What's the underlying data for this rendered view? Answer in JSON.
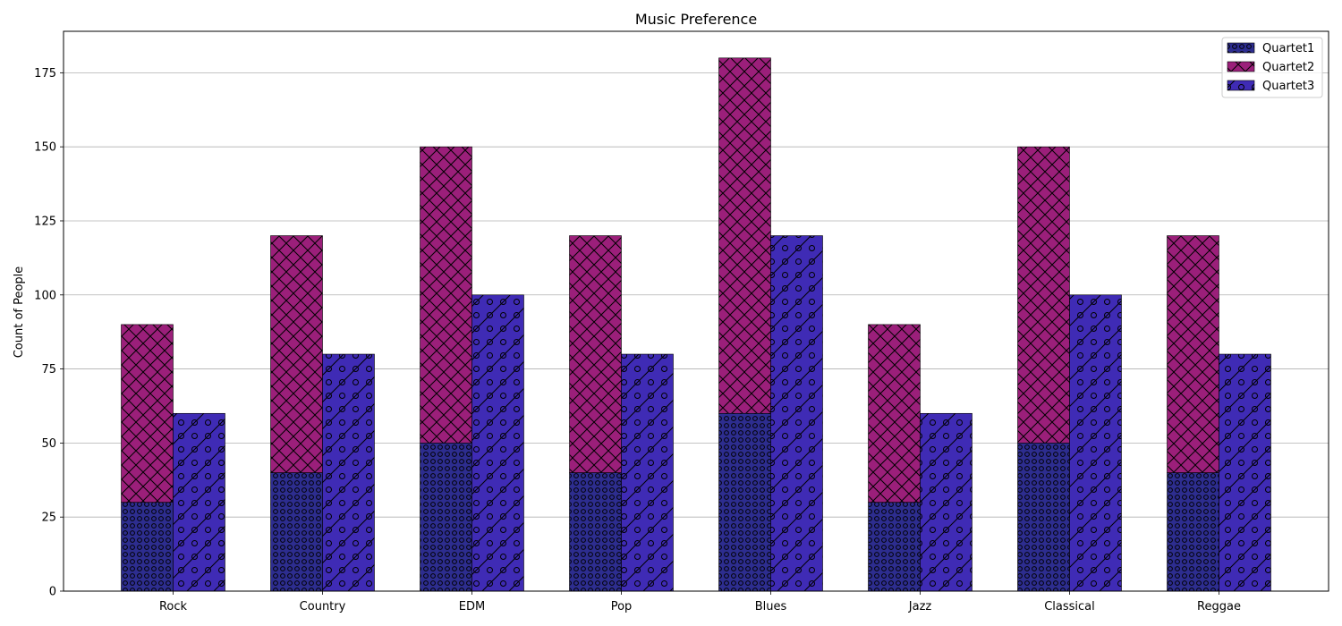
{
  "chart_data": {
    "type": "bar",
    "title": "Music Preference",
    "xlabel": "",
    "ylabel": "Count of People",
    "categories": [
      "Rock",
      "Country",
      "EDM",
      "Pop",
      "Blues",
      "Jazz",
      "Classical",
      "Reggae"
    ],
    "series": [
      {
        "name": "Quartet1",
        "values": [
          30,
          40,
          50,
          40,
          60,
          30,
          50,
          40
        ],
        "color": "#2d2d8f",
        "pattern": "circles-dense",
        "stack": "left",
        "base": "zero"
      },
      {
        "name": "Quartet2",
        "values": [
          60,
          80,
          100,
          80,
          120,
          60,
          100,
          80
        ],
        "color": "#9b1f7a",
        "pattern": "cross-hatch",
        "stack": "left",
        "base": "Quartet1"
      },
      {
        "name": "Quartet3",
        "values": [
          60,
          80,
          100,
          80,
          120,
          60,
          100,
          80
        ],
        "color": "#3f2bb5",
        "pattern": "diagonal-circles",
        "stack": "right",
        "base": "zero"
      }
    ],
    "ylim": [
      0,
      189
    ],
    "yticks": [
      0,
      25,
      50,
      75,
      100,
      125,
      150,
      175
    ],
    "grid": "y",
    "legend": "top-right"
  }
}
